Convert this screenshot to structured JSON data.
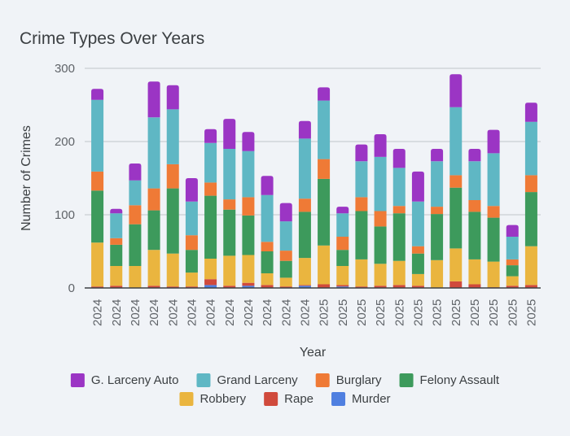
{
  "chart_data": {
    "type": "bar",
    "stacked": true,
    "title": "Crime Types Over Years",
    "xlabel": "Year",
    "ylabel": "Number of Crimes",
    "ylim": [
      0,
      300
    ],
    "yticks": [
      0,
      100,
      200,
      300
    ],
    "grid": true,
    "legend_position": "bottom",
    "categories": [
      "2024",
      "2024",
      "2024",
      "2024",
      "2024",
      "2024",
      "2024",
      "2024",
      "2024",
      "2024",
      "2024",
      "2024",
      "2025",
      "2025",
      "2025",
      "2025",
      "2025",
      "2025",
      "2025",
      "2025",
      "2025",
      "2025",
      "2025",
      "2025"
    ],
    "series": [
      {
        "name": "Murder",
        "color": "#4f7fe0",
        "values": [
          0,
          0,
          0,
          0,
          0,
          0,
          4,
          0,
          3,
          0,
          0,
          3,
          0,
          2,
          0,
          0,
          0,
          0,
          0,
          0,
          0,
          0,
          0,
          0
        ]
      },
      {
        "name": "Rape",
        "color": "#d04a3c",
        "values": [
          2,
          3,
          0,
          3,
          2,
          2,
          8,
          3,
          4,
          4,
          2,
          1,
          5,
          2,
          2,
          3,
          4,
          3,
          0,
          9,
          5,
          1,
          3,
          4
        ]
      },
      {
        "name": "Robbery",
        "color": "#eab53f",
        "values": [
          60,
          27,
          30,
          49,
          45,
          19,
          28,
          41,
          38,
          16,
          12,
          37,
          53,
          26,
          37,
          30,
          33,
          16,
          38,
          45,
          34,
          35,
          13,
          53
        ]
      },
      {
        "name": "Felony Assault",
        "color": "#3d9a5c",
        "values": [
          71,
          29,
          57,
          54,
          89,
          31,
          86,
          63,
          54,
          30,
          23,
          63,
          91,
          22,
          66,
          51,
          65,
          28,
          63,
          83,
          65,
          60,
          15,
          74
        ]
      },
      {
        "name": "Burglary",
        "color": "#ef7a36",
        "values": [
          26,
          9,
          26,
          30,
          33,
          20,
          18,
          14,
          25,
          13,
          14,
          18,
          27,
          18,
          19,
          21,
          10,
          10,
          10,
          17,
          16,
          16,
          8,
          23
        ]
      },
      {
        "name": "Grand Larceny",
        "color": "#5fb7c4",
        "values": [
          98,
          34,
          34,
          97,
          75,
          46,
          54,
          69,
          63,
          64,
          40,
          82,
          80,
          32,
          49,
          74,
          52,
          61,
          62,
          93,
          53,
          72,
          31,
          73
        ]
      },
      {
        "name": "G. Larceny Auto",
        "color": "#9b35c4",
        "values": [
          15,
          6,
          23,
          49,
          33,
          32,
          19,
          41,
          26,
          26,
          25,
          24,
          18,
          9,
          23,
          31,
          26,
          41,
          17,
          45,
          17,
          32,
          16,
          26
        ]
      }
    ],
    "legend": {
      "row1": [
        "G. Larceny Auto",
        "Grand Larceny",
        "Burglary",
        "Felony Assault"
      ],
      "row2": [
        "Robbery",
        "Rape",
        "Murder"
      ]
    }
  }
}
